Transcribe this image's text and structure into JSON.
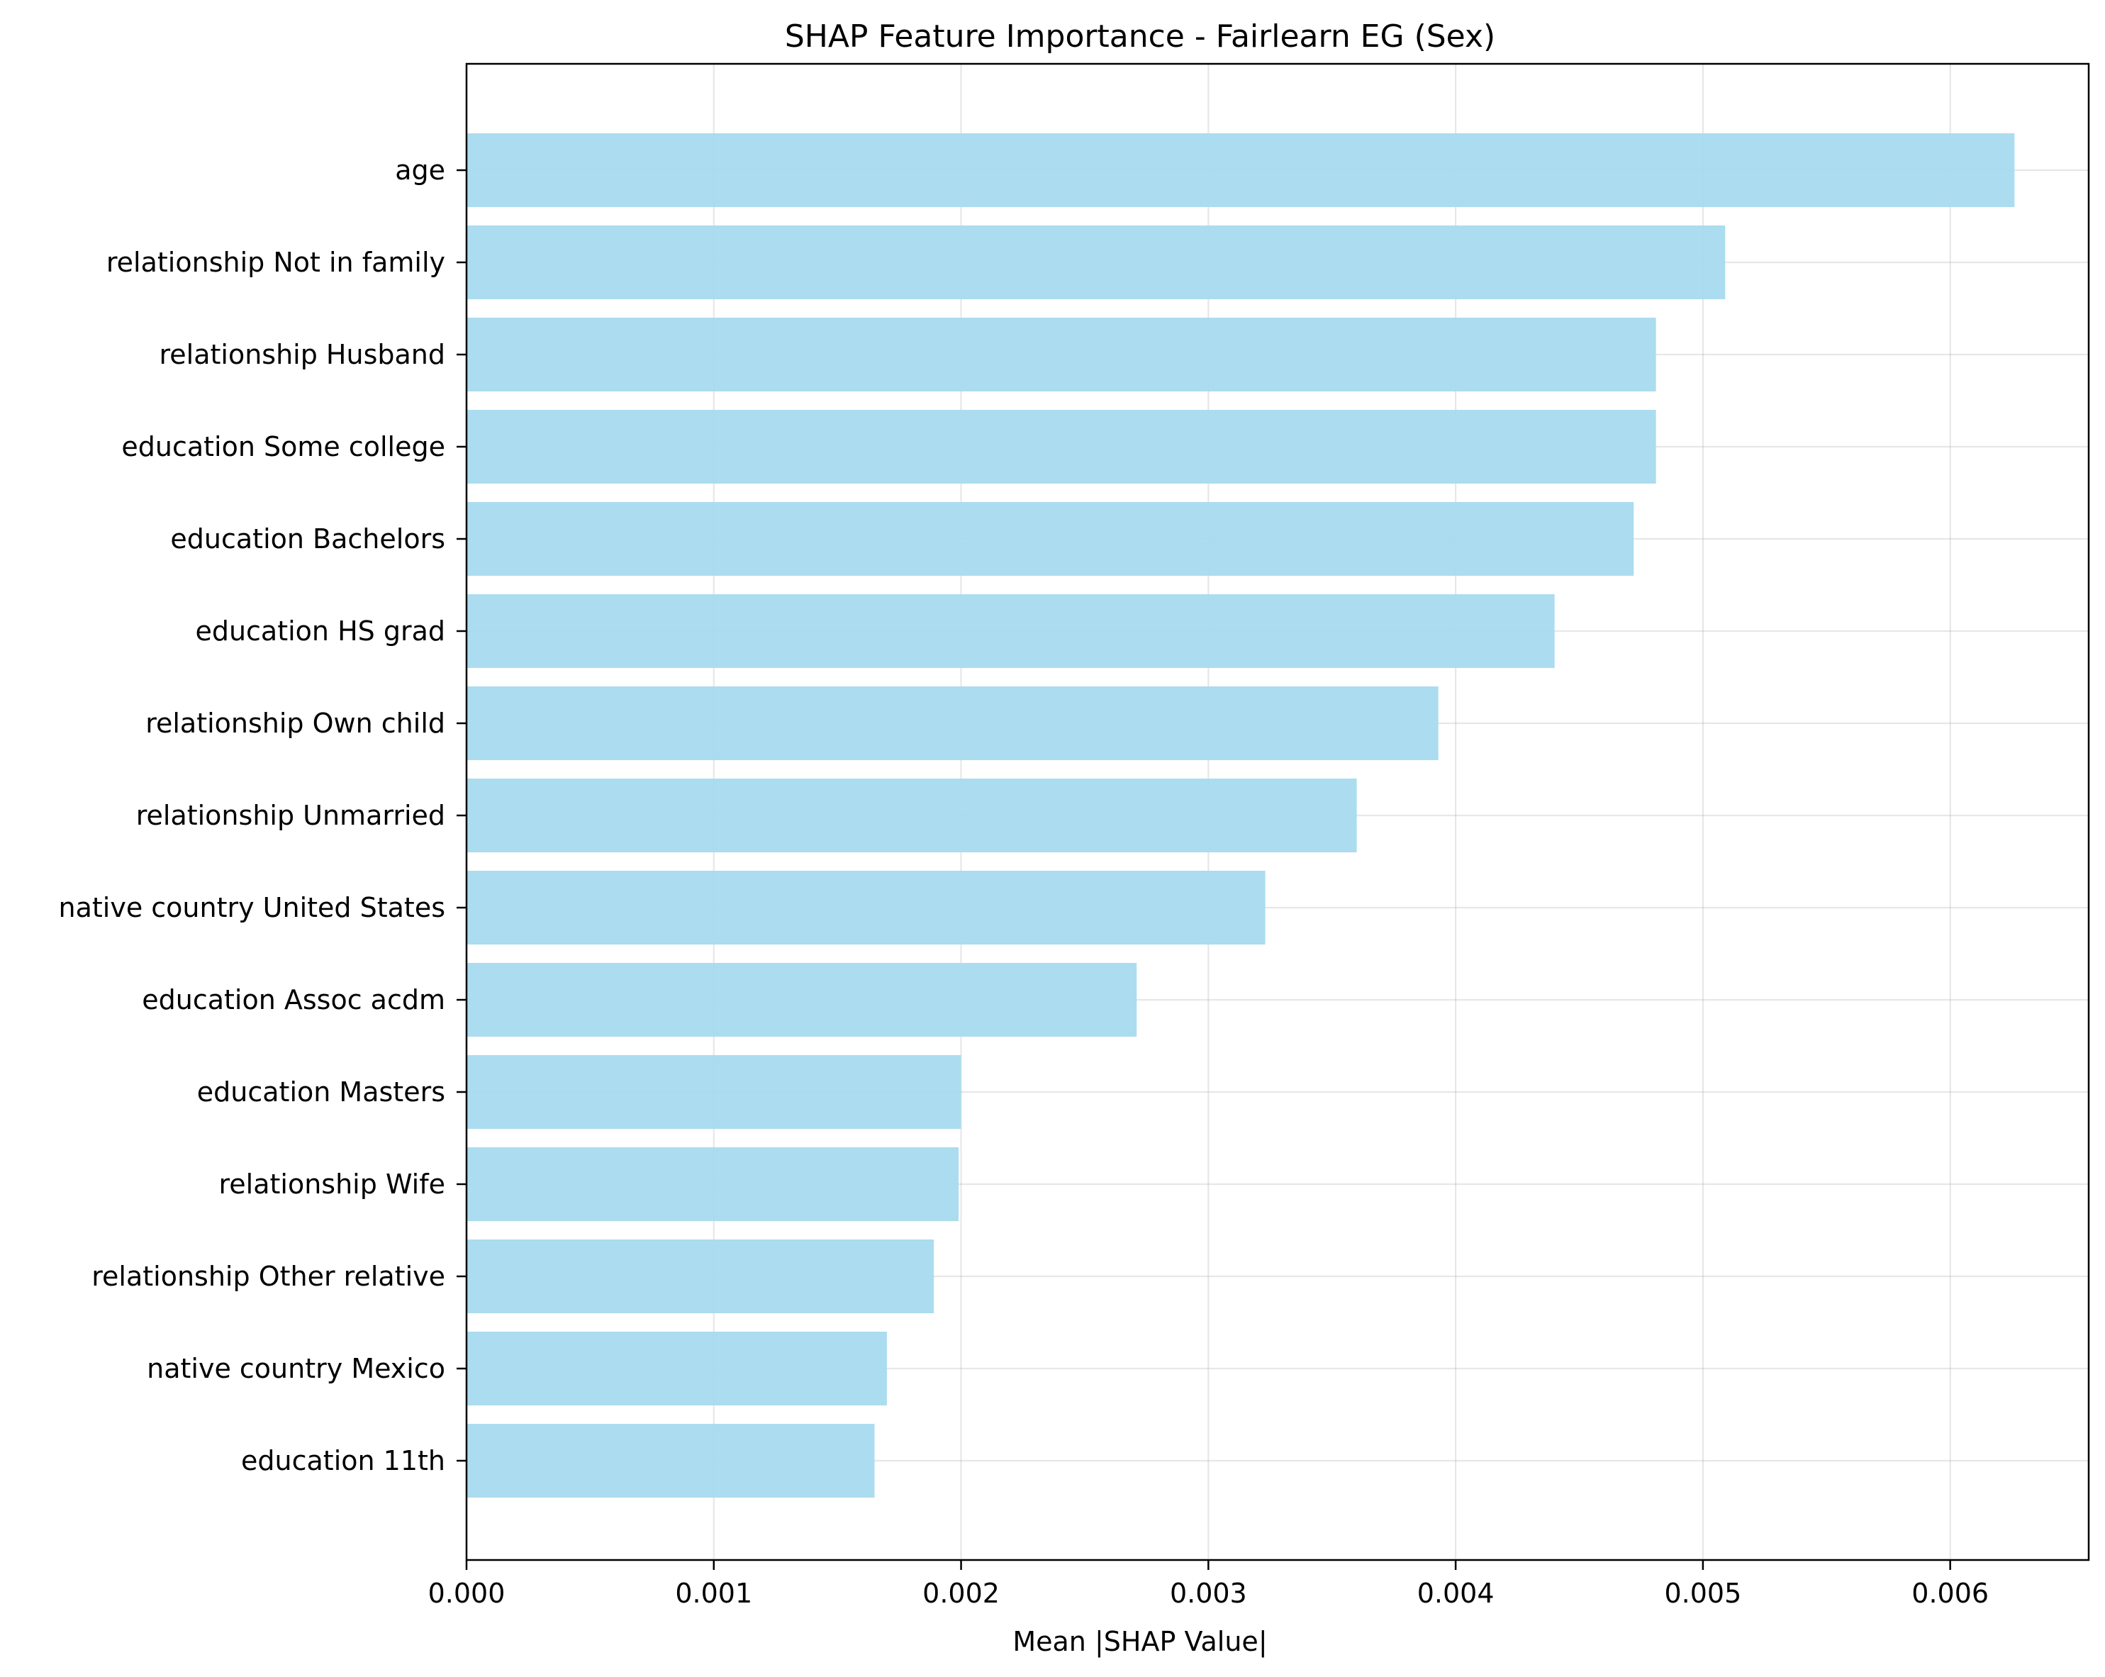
{
  "chart_data": {
    "type": "bar",
    "orientation": "horizontal",
    "title": "SHAP Feature Importance - Fairlearn EG (Sex)",
    "xlabel": "Mean |SHAP Value|",
    "ylabel": "",
    "xlim": [
      0,
      0.00656
    ],
    "xticks": [
      0,
      0.001,
      0.002,
      0.003,
      0.004,
      0.005,
      0.006
    ],
    "xtick_labels": [
      "0.000",
      "0.001",
      "0.002",
      "0.003",
      "0.004",
      "0.005",
      "0.006"
    ],
    "grid": true,
    "bar_color": "#a8daee",
    "categories": [
      "age",
      "relationship Not in family",
      "relationship Husband",
      "education Some college",
      "education Bachelors",
      "education HS grad",
      "relationship Own child",
      "relationship Unmarried",
      "native country United States",
      "education Assoc acdm",
      "education Masters",
      "relationship Wife",
      "relationship Other relative",
      "native country Mexico",
      "education 11th"
    ],
    "values": [
      0.00626,
      0.00509,
      0.00481,
      0.00481,
      0.00472,
      0.0044,
      0.00393,
      0.0036,
      0.00323,
      0.00271,
      0.002,
      0.00199,
      0.00189,
      0.0017,
      0.00165
    ]
  }
}
